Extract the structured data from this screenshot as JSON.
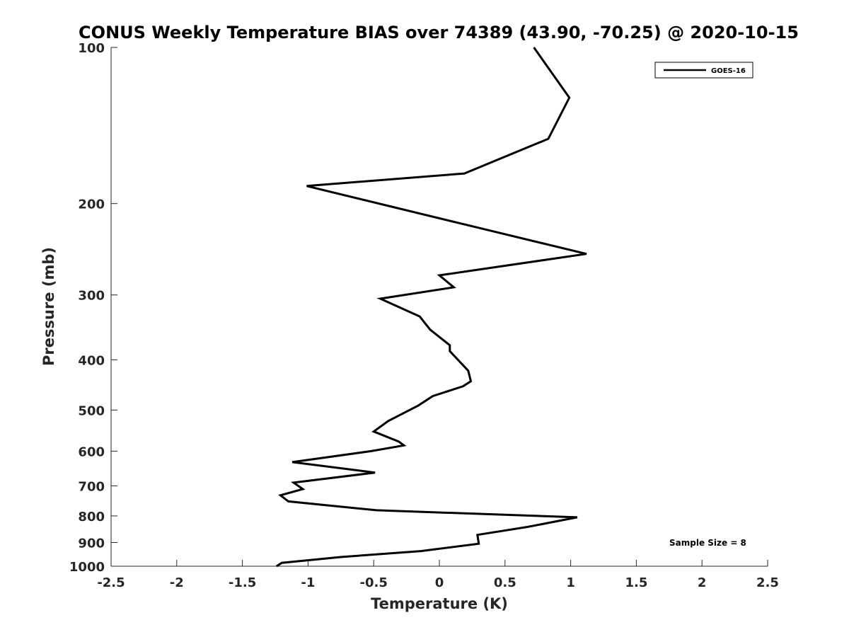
{
  "chart_data": {
    "type": "line",
    "title": "CONUS Weekly Temperature BIAS over 74389 (43.90, -70.25) @ 2020-10-15",
    "xlabel": "Temperature (K)",
    "ylabel": "Pressure (mb)",
    "xlim": [
      -2.5,
      2.5
    ],
    "ylim": [
      100,
      1000
    ],
    "y_scale": "log",
    "y_reversed": true,
    "grid": false,
    "x_ticks": [
      -2.5,
      -2,
      -1.5,
      -1,
      -0.5,
      0,
      0.5,
      1,
      1.5,
      2,
      2.5
    ],
    "x_tick_labels": [
      "-2.5",
      "-2",
      "-1.5",
      "-1",
      "-0.5",
      "0",
      "0.5",
      "1",
      "1.5",
      "2",
      "2.5"
    ],
    "y_ticks": [
      100,
      200,
      300,
      400,
      500,
      600,
      700,
      800,
      900,
      1000
    ],
    "y_tick_labels": [
      "100",
      "200",
      "300",
      "400",
      "500",
      "600",
      "700",
      "800",
      "900",
      "1000"
    ],
    "legend_position": "top-right",
    "annotation": "Sample Size = 8",
    "series": [
      {
        "name": "GOES-16",
        "color": "#000000",
        "x": [
          0.72,
          0.99,
          0.83,
          0.19,
          -1.01,
          0.37,
          1.12,
          0.0,
          0.11,
          -0.45,
          -0.15,
          -0.07,
          0.08,
          0.08,
          0.22,
          0.24,
          0.18,
          -0.05,
          -0.16,
          -0.39,
          -0.5,
          -0.31,
          -0.27,
          -0.52,
          -1.12,
          -0.49,
          -1.11,
          -1.04,
          -1.21,
          -1.15,
          -0.48,
          1.05,
          0.67,
          0.29,
          0.3,
          -0.14,
          -0.75,
          -1.2,
          -1.24
        ],
        "y": [
          100,
          125,
          150,
          175,
          185,
          225,
          250,
          275,
          290,
          305,
          330,
          350,
          375,
          385,
          420,
          440,
          450,
          470,
          490,
          525,
          550,
          575,
          585,
          600,
          630,
          660,
          690,
          710,
          730,
          750,
          780,
          805,
          840,
          870,
          905,
          935,
          960,
          985,
          1000
        ]
      }
    ]
  }
}
